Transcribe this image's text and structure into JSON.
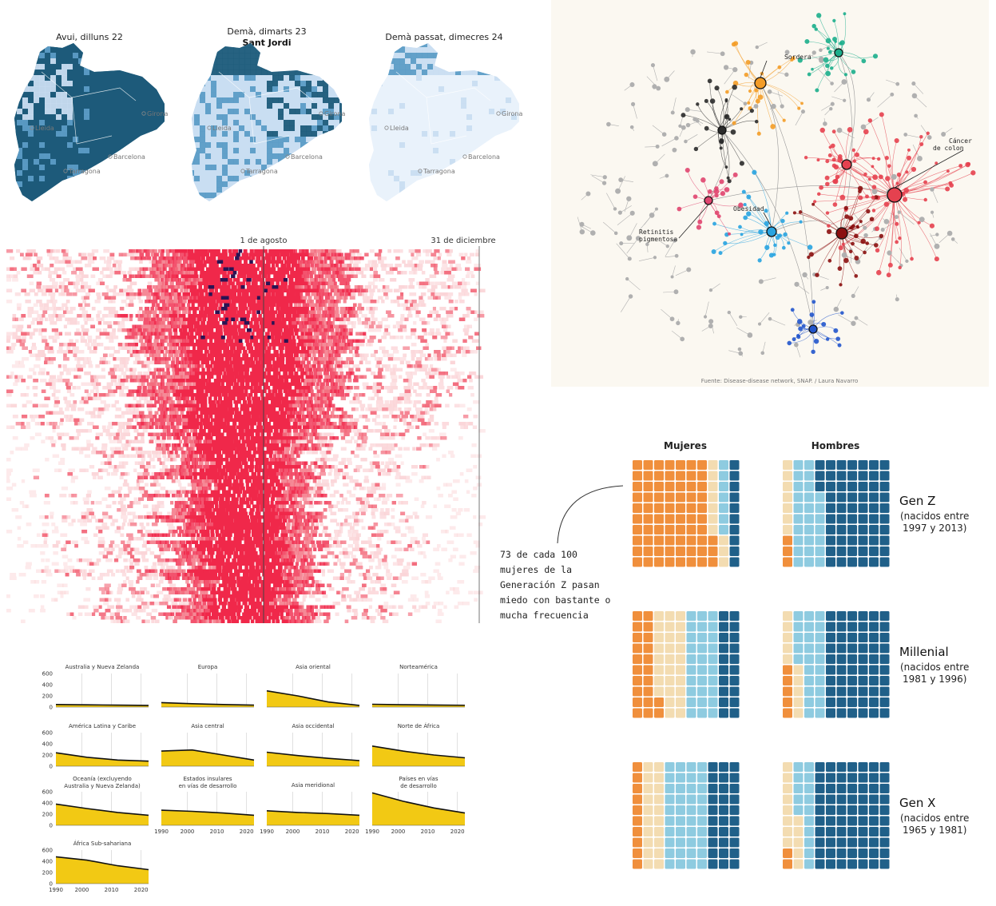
{
  "maps": {
    "panels": [
      {
        "title": "Avui, dilluns 22",
        "subtitle": "",
        "intensity": "high"
      },
      {
        "title": "Demà, dimarts 23",
        "subtitle": "Sant Jordi",
        "intensity": "medium"
      },
      {
        "title": "Demà passat, dimecres 24",
        "subtitle": "",
        "intensity": "low"
      }
    ],
    "cities": [
      "Lleida",
      "Girona",
      "Barcelona",
      "Tarragona"
    ],
    "colors": {
      "high": "#1d5b7a",
      "mid": "#5c9cc6",
      "low": "#c9ddf1",
      "pale": "#e9f1fb"
    }
  },
  "heatmap": {
    "date_labels": [
      "1 de agosto",
      "31 de diciembre"
    ],
    "colors": {
      "light": "#fbd5d8",
      "mid": "#f36b7c",
      "hot": "#f0284a",
      "max": "#2b1454"
    }
  },
  "network": {
    "labels": [
      "Sordera",
      "Cáncer de colon",
      "Obesidad",
      "Retinitis pigmentosa"
    ],
    "source": "Fuente: Disease-disease network, SNAP. / Laura Navarro",
    "colors": {
      "gray": "#b0b0b0",
      "red": "#e5414f",
      "orange": "#f39c27",
      "black": "#2b2b2b",
      "teal": "#1cae8c",
      "pink": "#e0456f",
      "blue": "#27a3e0",
      "darkred": "#8b1010",
      "navy": "#2255cc"
    }
  },
  "chart_data": [
    {
      "type": "area",
      "title": "",
      "x": [
        1990,
        2000,
        2010,
        2020
      ],
      "ylim": [
        0,
        600
      ],
      "yticks": [
        "0",
        "200",
        "400",
        "600"
      ],
      "xticks": [
        "1990",
        "2000",
        "2010",
        "2020"
      ],
      "fill_color": "#f2c914",
      "series": [
        {
          "name": "Australia y Nueva Zelanda",
          "values": [
            45,
            40,
            35,
            30
          ]
        },
        {
          "name": "Europa",
          "values": [
            80,
            60,
            45,
            35
          ]
        },
        {
          "name": "Asia oriental",
          "values": [
            290,
            200,
            90,
            30
          ]
        },
        {
          "name": "Norteamérica",
          "values": [
            50,
            42,
            36,
            32
          ]
        },
        {
          "name": "América Latina y Caribe",
          "values": [
            240,
            160,
            110,
            90
          ]
        },
        {
          "name": "Asia central",
          "values": [
            270,
            290,
            200,
            110
          ]
        },
        {
          "name": "Asia occidental",
          "values": [
            250,
            190,
            140,
            100
          ]
        },
        {
          "name": "Norte de África",
          "values": [
            360,
            270,
            200,
            150
          ]
        },
        {
          "name": "Oceanía (excluyendo Australia y Nueva Zelanda)",
          "values": [
            380,
            300,
            230,
            180
          ]
        },
        {
          "name": "Estados insulares en vías de desarrollo",
          "values": [
            270,
            250,
            220,
            180
          ]
        },
        {
          "name": "Asia meridional",
          "values": [
            260,
            230,
            210,
            180
          ]
        },
        {
          "name": "Países en vías de desarrollo",
          "values": [
            580,
            430,
            310,
            220
          ]
        },
        {
          "name": "África Sub-sahariana",
          "values": [
            480,
            420,
            320,
            250
          ]
        }
      ]
    },
    {
      "type": "waffle",
      "title": "",
      "columns": [
        "Mujeres",
        "Hombres"
      ],
      "category_colors": [
        "#f08f3c",
        "#f3dcb1",
        "#8ecbe0",
        "#206089"
      ],
      "units": "cuadros de 100",
      "rows": [
        {
          "name": "Gen Z",
          "range": "(nacidos entre",
          "range2": "1997 y 2013)",
          "mujeres": [
            73,
            10,
            7,
            10
          ],
          "hombres": [
            3,
            7,
            27,
            63
          ]
        },
        {
          "name": "Millenial",
          "range": "(nacidos entre",
          "range2": "1981 y 1996)",
          "mujeres": [
            22,
            28,
            30,
            20
          ],
          "hombres": [
            5,
            10,
            25,
            60
          ]
        },
        {
          "name": "Gen X",
          "range": "(nacidos entre",
          "range2": "1965 y 1981)",
          "mujeres": [
            10,
            20,
            40,
            30
          ],
          "hombres": [
            2,
            13,
            15,
            70
          ]
        }
      ],
      "annotation": [
        "73 de cada 100",
        "mujeres de la",
        "Generación Z pasan",
        "miedo con bastante o",
        "mucha frecuencia"
      ]
    }
  ]
}
